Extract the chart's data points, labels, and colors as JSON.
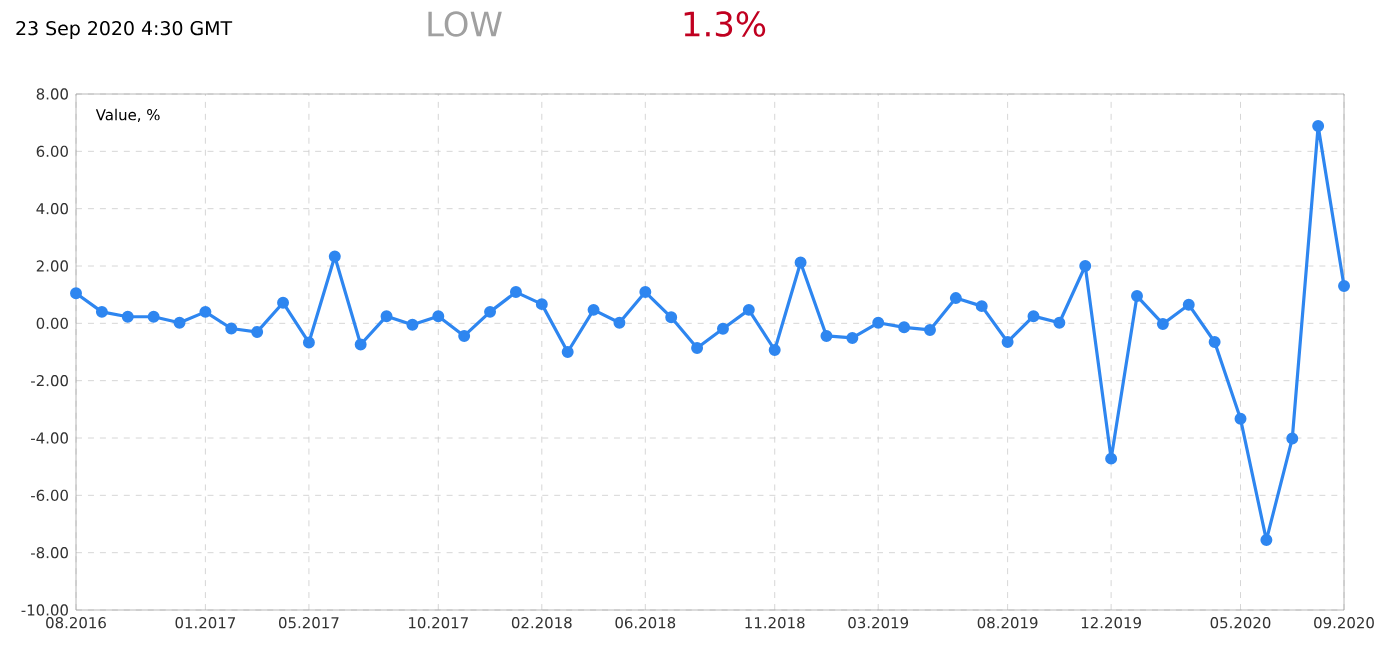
{
  "chart_data": {
    "type": "line",
    "title": "23 Sep 2020 4:30 GMT",
    "annotations": [
      "LOW",
      "1.3%"
    ],
    "ylabel": "Value, %",
    "x": [
      "2016-08",
      "2016-09",
      "2016-10",
      "2016-11",
      "2016-12",
      "2017-01",
      "2017-02",
      "2017-03",
      "2017-04",
      "2017-05",
      "2017-06",
      "2017-07",
      "2017-08",
      "2017-09",
      "2017-10",
      "2017-11",
      "2017-12",
      "2018-01",
      "2018-02",
      "2018-03",
      "2018-04",
      "2018-05",
      "2018-06",
      "2018-07",
      "2018-08",
      "2018-09",
      "2018-10",
      "2018-11",
      "2018-12",
      "2019-01",
      "2019-02",
      "2019-03",
      "2019-04",
      "2019-05",
      "2019-06",
      "2019-07",
      "2019-08",
      "2019-09",
      "2019-10",
      "2019-11",
      "2019-12",
      "2020-01",
      "2020-02",
      "2020-03",
      "2020-04",
      "2020-05",
      "2020-06",
      "2020-07",
      "2020-08",
      "2020-09"
    ],
    "series": [
      {
        "color": "#2e86f0",
        "values": [
          1.05,
          0.4,
          0.23,
          0.23,
          0.02,
          0.4,
          -0.18,
          -0.3,
          0.72,
          -0.67,
          2.33,
          -0.74,
          0.25,
          -0.05,
          0.25,
          -0.44,
          0.4,
          1.09,
          0.67,
          -1.0,
          0.47,
          0.02,
          1.09,
          0.21,
          -0.86,
          -0.19,
          0.47,
          -0.93,
          2.12,
          -0.44,
          -0.51,
          0.02,
          -0.14,
          -0.23,
          0.88,
          0.6,
          -0.65,
          0.25,
          0.02,
          2.0,
          -4.72,
          0.95,
          -0.02,
          0.65,
          -0.65,
          -3.33,
          -7.56,
          -4.02,
          6.88,
          1.3
        ]
      }
    ],
    "xlim": [
      "2016-08",
      "2020-09"
    ],
    "xticks": [
      {
        "value": "2016-08",
        "label": "08.2016"
      },
      {
        "value": "2017-01",
        "label": "01.2017"
      },
      {
        "value": "2017-05",
        "label": "05.2017"
      },
      {
        "value": "2017-10",
        "label": "10.2017"
      },
      {
        "value": "2018-02",
        "label": "02.2018"
      },
      {
        "value": "2018-06",
        "label": "06.2018"
      },
      {
        "value": "2018-11",
        "label": "11.2018"
      },
      {
        "value": "2019-03",
        "label": "03.2019"
      },
      {
        "value": "2019-08",
        "label": "08.2019"
      },
      {
        "value": "2019-12",
        "label": "12.2019"
      },
      {
        "value": "2020-05",
        "label": "05.2020"
      },
      {
        "value": "2020-09",
        "label": "09.2020"
      }
    ],
    "ylim": [
      -10,
      8
    ],
    "yticks": [
      {
        "value": -10,
        "label": "-10.00"
      },
      {
        "value": -8,
        "label": "-8.00"
      },
      {
        "value": -6,
        "label": "-6.00"
      },
      {
        "value": -4,
        "label": "-4.00"
      },
      {
        "value": -2,
        "label": "-2.00"
      },
      {
        "value": 0,
        "label": "0.00"
      },
      {
        "value": 2,
        "label": "2.00"
      },
      {
        "value": 4,
        "label": "4.00"
      },
      {
        "value": 6,
        "label": "6.00"
      },
      {
        "value": 8,
        "label": "8.00"
      }
    ],
    "grid": true,
    "marker": "circle",
    "line_style": "solid"
  }
}
